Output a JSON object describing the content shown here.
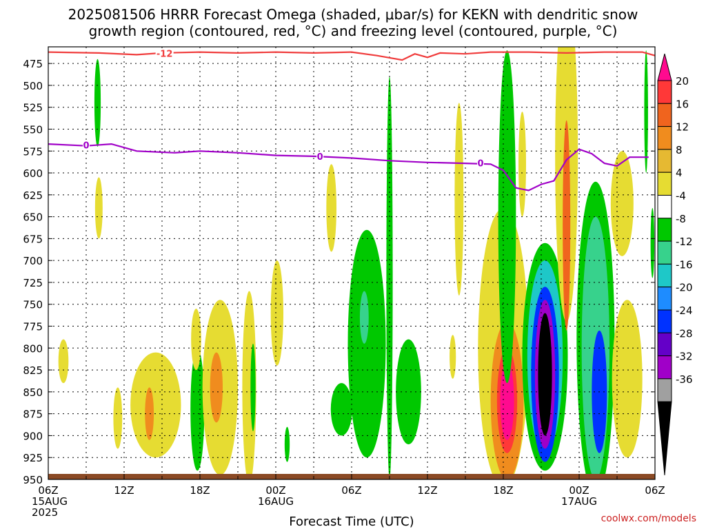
{
  "title_line1": "2025081506 HRRR Forecast Omega (shaded, μbar/s) for KEKN with dendritic snow",
  "title_line2": "growth region (contoured, red, °C) and freezing level (contoured, purple, °C)",
  "credit": "coolwx.com/models",
  "chart_data": {
    "type": "heatmap",
    "title": "2025081506 HRRR Forecast Omega (shaded, μbar/s) for KEKN with dendritic snow growth region (contoured, red, °C) and freezing level (contoured, purple, °C)",
    "xlabel": "Forecast Time (UTC)",
    "ylabel": "",
    "x_range_hours": [
      0,
      48
    ],
    "y_range_hpa": [
      456,
      950
    ],
    "y_ticks": [
      475,
      500,
      525,
      550,
      575,
      600,
      625,
      650,
      675,
      700,
      725,
      750,
      775,
      800,
      825,
      850,
      875,
      900,
      925,
      950
    ],
    "x_ticks": [
      {
        "h": 0,
        "lines": [
          "06Z",
          "15AUG",
          "2025"
        ]
      },
      {
        "h": 6,
        "lines": [
          "12Z"
        ]
      },
      {
        "h": 12,
        "lines": [
          "18Z"
        ]
      },
      {
        "h": 18,
        "lines": [
          "00Z",
          "16AUG"
        ]
      },
      {
        "h": 24,
        "lines": [
          "06Z"
        ]
      },
      {
        "h": 30,
        "lines": [
          "12Z"
        ]
      },
      {
        "h": 36,
        "lines": [
          "18Z"
        ]
      },
      {
        "h": 42,
        "lines": [
          "00Z",
          "17AUG"
        ]
      },
      {
        "h": 48,
        "lines": [
          "06Z"
        ]
      }
    ],
    "grid": true,
    "colorbar": {
      "labels": [
        "20",
        "16",
        "12",
        "8",
        "4",
        "-4",
        "-8",
        "-12",
        "-16",
        "-20",
        "-24",
        "-28",
        "-32",
        "-36"
      ],
      "colors": [
        "#ff0a8f",
        "#ff3838",
        "#f0641e",
        "#f08c1e",
        "#e6b932",
        "#e6dc32",
        "#ffffff",
        "#00c800",
        "#37d28c",
        "#1ec8c8",
        "#1e8cff",
        "#0032ff",
        "#6400c8",
        "#a000c8",
        "#a0a0a0",
        "#000000"
      ]
    },
    "contours": [
      {
        "name": "freezing level",
        "label": "0",
        "color": "#a000c8",
        "points": [
          [
            0,
            567
          ],
          [
            3,
            569
          ],
          [
            5,
            567
          ],
          [
            7,
            575
          ],
          [
            10,
            577
          ],
          [
            12,
            575
          ],
          [
            15,
            577
          ],
          [
            18,
            580
          ],
          [
            21,
            581
          ],
          [
            24,
            583
          ],
          [
            27,
            586
          ],
          [
            30,
            588
          ],
          [
            33,
            589
          ],
          [
            35,
            590
          ],
          [
            36,
            597
          ],
          [
            37,
            617
          ],
          [
            38,
            620
          ],
          [
            39,
            613
          ],
          [
            40,
            609
          ],
          [
            41,
            585
          ],
          [
            42,
            573
          ],
          [
            43,
            578
          ],
          [
            44,
            589
          ],
          [
            45,
            592
          ],
          [
            46,
            582
          ],
          [
            47.5,
            582
          ]
        ]
      },
      {
        "name": "dendritic growth region",
        "label": "-12",
        "color": "#f03c3c",
        "points": [
          [
            0,
            462
          ],
          [
            4,
            463
          ],
          [
            7,
            465
          ],
          [
            9,
            463
          ],
          [
            12,
            462
          ],
          [
            15,
            463
          ],
          [
            18,
            462
          ],
          [
            21,
            463
          ],
          [
            24,
            462
          ],
          [
            26,
            466
          ],
          [
            28,
            471
          ],
          [
            29,
            464
          ],
          [
            30,
            468
          ],
          [
            31,
            463
          ],
          [
            33,
            464
          ],
          [
            35,
            462
          ],
          [
            38,
            462
          ],
          [
            41,
            463
          ],
          [
            44,
            462
          ],
          [
            47,
            462
          ],
          [
            48,
            466
          ]
        ]
      }
    ],
    "omega_features": [
      {
        "h": 1.2,
        "p": 815,
        "rh": 0.4,
        "rp": 25,
        "value": 4
      },
      {
        "h": 3.9,
        "p": 520,
        "rh": 0.25,
        "rp": 50,
        "value": -8
      },
      {
        "h": 4.0,
        "p": 640,
        "rh": 0.3,
        "rp": 35,
        "value": 4
      },
      {
        "h": 5.5,
        "p": 880,
        "rh": 0.35,
        "rp": 35,
        "value": 4
      },
      {
        "h": 8.5,
        "p": 865,
        "rh": 2.0,
        "rp": 60,
        "value": 4
      },
      {
        "h": 8.0,
        "p": 875,
        "rh": 0.35,
        "rp": 30,
        "value": 8
      },
      {
        "h": 11.8,
        "p": 870,
        "rh": 0.55,
        "rp": 70,
        "value": -8
      },
      {
        "h": 11.7,
        "p": 790,
        "rh": 0.4,
        "rp": 35,
        "value": 4
      },
      {
        "h": 13.6,
        "p": 845,
        "rh": 1.4,
        "rp": 100,
        "value": 4
      },
      {
        "h": 13.3,
        "p": 845,
        "rh": 0.5,
        "rp": 40,
        "value": 8
      },
      {
        "h": 15.9,
        "p": 845,
        "rh": 0.55,
        "rp": 110,
        "value": 4
      },
      {
        "h": 16.2,
        "p": 845,
        "rh": 0.2,
        "rp": 50,
        "value": -8
      },
      {
        "h": 18.1,
        "p": 760,
        "rh": 0.5,
        "rp": 60,
        "value": 4
      },
      {
        "h": 18.9,
        "p": 910,
        "rh": 0.2,
        "rp": 20,
        "value": -8
      },
      {
        "h": 22.4,
        "p": 640,
        "rh": 0.4,
        "rp": 50,
        "value": 4
      },
      {
        "h": 23.2,
        "p": 870,
        "rh": 0.85,
        "rp": 30,
        "value": -8
      },
      {
        "h": 25.2,
        "p": 795,
        "rh": 1.5,
        "rp": 130,
        "value": -8
      },
      {
        "h": 25.0,
        "p": 765,
        "rh": 0.35,
        "rp": 30,
        "value": -12
      },
      {
        "h": 27.0,
        "p": 720,
        "rh": 0.25,
        "rp": 230,
        "value": -8
      },
      {
        "h": 28.5,
        "p": 850,
        "rh": 1.0,
        "rp": 60,
        "value": -8
      },
      {
        "h": 32.5,
        "p": 630,
        "rh": 0.35,
        "rp": 110,
        "value": 4
      },
      {
        "h": 32.0,
        "p": 810,
        "rh": 0.25,
        "rp": 25,
        "value": 4
      },
      {
        "h": 36.0,
        "p": 800,
        "rh": 2.0,
        "rp": 160,
        "value": 4
      },
      {
        "h": 36.3,
        "p": 860,
        "rh": 1.3,
        "rp": 90,
        "value": 8
      },
      {
        "h": 36.3,
        "p": 860,
        "rh": 0.8,
        "rp": 60,
        "value": 16
      },
      {
        "h": 36.3,
        "p": 860,
        "rh": 0.55,
        "rp": 45,
        "value": 20
      },
      {
        "h": 36.3,
        "p": 650,
        "rh": 0.7,
        "rp": 190,
        "value": -8
      },
      {
        "h": 37.5,
        "p": 590,
        "rh": 0.3,
        "rp": 60,
        "value": 4
      },
      {
        "h": 39.3,
        "p": 810,
        "rh": 1.8,
        "rp": 130,
        "value": -8
      },
      {
        "h": 39.3,
        "p": 810,
        "rh": 1.4,
        "rp": 110,
        "value": -16
      },
      {
        "h": 39.3,
        "p": 830,
        "rh": 1.1,
        "rp": 100,
        "value": -24
      },
      {
        "h": 39.3,
        "p": 830,
        "rh": 0.8,
        "rp": 85,
        "value": -32
      },
      {
        "h": 39.3,
        "p": 830,
        "rh": 0.55,
        "rp": 70,
        "value": -36
      },
      {
        "h": 41.0,
        "p": 580,
        "rh": 0.9,
        "rp": 190,
        "value": 4
      },
      {
        "h": 41.0,
        "p": 660,
        "rh": 0.3,
        "rp": 120,
        "value": 12
      },
      {
        "h": 43.3,
        "p": 790,
        "rh": 1.5,
        "rp": 180,
        "value": -8
      },
      {
        "h": 43.3,
        "p": 800,
        "rh": 1.1,
        "rp": 150,
        "value": -12
      },
      {
        "h": 43.6,
        "p": 850,
        "rh": 0.6,
        "rp": 70,
        "value": -24
      },
      {
        "h": 45.4,
        "p": 635,
        "rh": 0.9,
        "rp": 60,
        "value": 4
      },
      {
        "h": 45.8,
        "p": 835,
        "rh": 1.2,
        "rp": 90,
        "value": 4
      },
      {
        "h": 47.3,
        "p": 530,
        "rh": 0.15,
        "rp": 70,
        "value": -8
      },
      {
        "h": 47.8,
        "p": 680,
        "rh": 0.15,
        "rp": 40,
        "value": -8
      }
    ]
  }
}
